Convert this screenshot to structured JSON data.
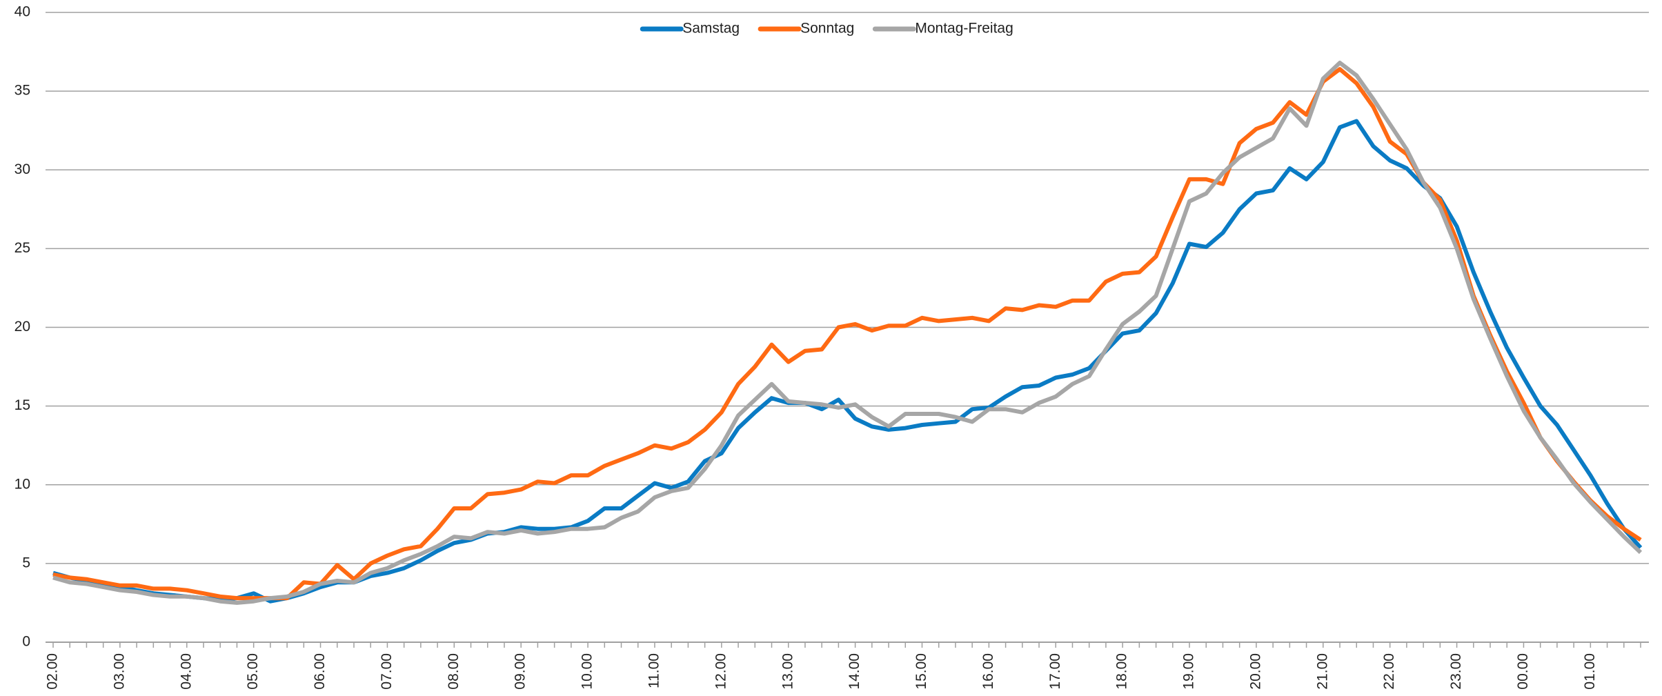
{
  "chart_data": {
    "type": "line",
    "categories": [
      "02.00",
      null,
      null,
      null,
      "03.00",
      null,
      null,
      null,
      "04.00",
      null,
      null,
      null,
      "05.00",
      null,
      null,
      null,
      "06.00",
      null,
      null,
      null,
      "07.00",
      null,
      null,
      null,
      "08.00",
      null,
      null,
      null,
      "09.00",
      null,
      null,
      null,
      "10.00",
      null,
      null,
      null,
      "11.00",
      null,
      null,
      null,
      "12.00",
      null,
      null,
      null,
      "13.00",
      null,
      null,
      null,
      "14.00",
      null,
      null,
      null,
      "15.00",
      null,
      null,
      null,
      "16.00",
      null,
      null,
      null,
      "17.00",
      null,
      null,
      null,
      "18.00",
      null,
      null,
      null,
      "19.00",
      null,
      null,
      null,
      "20.00",
      null,
      null,
      null,
      "21.00",
      null,
      null,
      null,
      "22.00",
      null,
      null,
      null,
      "23.00",
      null,
      null,
      null,
      "00.00",
      null,
      null,
      null,
      "01.00",
      null,
      null,
      null
    ],
    "series": [
      {
        "name": "Samstag",
        "color": "#0a7bc4",
        "values": [
          4.4,
          4.1,
          3.9,
          3.7,
          3.5,
          3.3,
          3.1,
          3.0,
          2.9,
          2.8,
          2.7,
          2.8,
          3.1,
          2.6,
          2.8,
          3.1,
          3.5,
          3.8,
          3.8,
          4.2,
          4.4,
          4.7,
          5.2,
          5.8,
          6.3,
          6.5,
          6.9,
          7.0,
          7.3,
          7.2,
          7.2,
          7.3,
          7.7,
          8.5,
          8.5,
          9.3,
          10.1,
          9.8,
          10.2,
          11.5,
          12.0,
          13.6,
          14.6,
          15.5,
          15.2,
          15.2,
          14.8,
          15.4,
          14.2,
          13.7,
          13.5,
          13.6,
          13.8,
          13.9,
          14.0,
          14.8,
          14.9,
          15.6,
          16.2,
          16.3,
          16.8,
          17.0,
          17.4,
          18.5,
          19.6,
          19.8,
          20.9,
          22.8,
          25.3,
          25.1,
          26.0,
          27.5,
          28.5,
          28.7,
          30.1,
          29.4,
          30.5,
          32.7,
          33.1,
          31.5,
          30.6,
          30.1,
          29.0,
          28.2,
          26.4,
          23.5,
          21.0,
          18.7,
          16.8,
          15.0,
          13.8,
          12.2,
          10.6,
          8.8,
          7.2,
          6.0
        ]
      },
      {
        "name": "Sonntag",
        "color": "#ff6a13",
        "values": [
          4.3,
          4.1,
          4.0,
          3.8,
          3.6,
          3.6,
          3.4,
          3.4,
          3.3,
          3.1,
          2.9,
          2.8,
          2.8,
          2.8,
          2.8,
          3.8,
          3.7,
          4.9,
          4.0,
          5.0,
          5.5,
          5.9,
          6.1,
          7.2,
          8.5,
          8.5,
          9.4,
          9.5,
          9.7,
          10.2,
          10.1,
          10.6,
          10.6,
          11.2,
          11.6,
          12.0,
          12.5,
          12.3,
          12.7,
          13.5,
          14.6,
          16.4,
          17.5,
          18.9,
          17.8,
          18.5,
          18.6,
          20.0,
          20.2,
          19.8,
          20.1,
          20.1,
          20.6,
          20.4,
          20.5,
          20.6,
          20.4,
          21.2,
          21.1,
          21.4,
          21.3,
          21.7,
          21.7,
          22.9,
          23.4,
          23.5,
          24.5,
          27.0,
          29.4,
          29.4,
          29.1,
          31.7,
          32.6,
          33.0,
          34.3,
          33.5,
          35.6,
          36.4,
          35.5,
          34.0,
          31.8,
          31.0,
          29.2,
          28.1,
          25.5,
          22.0,
          19.5,
          17.2,
          15.2,
          13.0,
          11.5,
          10.2,
          9.0,
          8.0,
          7.2,
          6.5
        ]
      },
      {
        "name": "Montag-Freitag",
        "color": "#a6a6a6",
        "values": [
          4.1,
          3.8,
          3.7,
          3.5,
          3.3,
          3.2,
          3.0,
          2.9,
          2.9,
          2.8,
          2.6,
          2.5,
          2.6,
          2.8,
          2.9,
          3.2,
          3.7,
          3.9,
          3.8,
          4.4,
          4.7,
          5.2,
          5.6,
          6.1,
          6.7,
          6.6,
          7.0,
          6.9,
          7.1,
          6.9,
          7.0,
          7.2,
          7.2,
          7.3,
          7.9,
          8.3,
          9.2,
          9.6,
          9.8,
          11.0,
          12.5,
          14.4,
          15.4,
          16.4,
          15.3,
          15.2,
          15.1,
          14.9,
          15.1,
          14.3,
          13.7,
          14.5,
          14.5,
          14.5,
          14.3,
          14.0,
          14.8,
          14.8,
          14.6,
          15.2,
          15.6,
          16.4,
          16.9,
          18.6,
          20.2,
          21.0,
          22.0,
          25.0,
          28.0,
          28.5,
          29.8,
          30.8,
          31.4,
          32.0,
          33.9,
          32.8,
          35.8,
          36.8,
          36.0,
          34.5,
          32.9,
          31.3,
          29.2,
          27.6,
          25.0,
          21.8,
          19.3,
          16.9,
          14.7,
          13.0,
          11.6,
          10.1,
          8.9,
          7.8,
          6.7,
          5.7
        ]
      }
    ],
    "ylim": [
      0,
      40
    ],
    "yticks": [
      0,
      5,
      10,
      15,
      20,
      25,
      30,
      35,
      40
    ],
    "grid": true,
    "legend": "top"
  }
}
